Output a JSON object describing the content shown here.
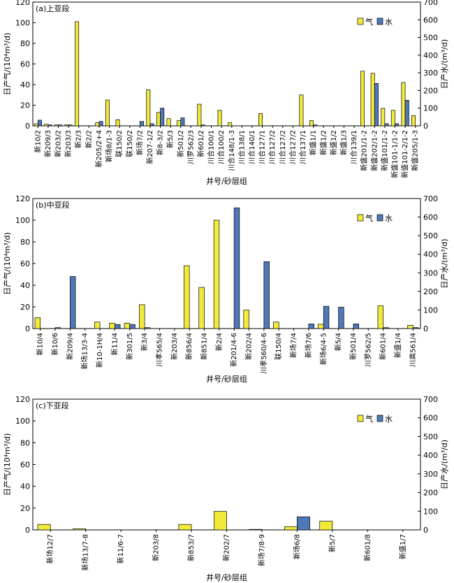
{
  "chart_data": [
    {
      "type": "bar",
      "panel_label": "(a)上亚段",
      "xlabel": "井号/砂层组",
      "ylabel": "日产气/(10⁴m³/d)",
      "ylabel2": "日产水/(m³/d)",
      "ylim": [
        0,
        120
      ],
      "y2lim": [
        0,
        700
      ],
      "yticks": [
        0,
        20,
        40,
        60,
        80,
        100,
        120
      ],
      "y2ticks": [
        0,
        100,
        200,
        300,
        400,
        500,
        600,
        700
      ],
      "legend": [
        "气",
        "水"
      ],
      "legend_position": "top-right",
      "categories": [
        "新10/2",
        "新209/3",
        "新203/2",
        "新203/3",
        "新2/3",
        "新2/2",
        "新205/2+4",
        "新场8/1-3",
        "联150/2",
        "联150/2",
        "新场7/2",
        "新207-1/2",
        "新8-3/2",
        "新5/3",
        "新501/2",
        "川罗562/3",
        "新601/2",
        "川合100/1",
        "川合100/2",
        "川合148/1-3",
        "川合138/1",
        "川合140/1",
        "川合127/1",
        "川合127/2",
        "川合127/2",
        "川合127/2",
        "川合137/1",
        "新盛1/1",
        "新盛1/2",
        "新盛1/2",
        "新盛1/3",
        "川合139/1",
        "新盛201/1-2",
        "新盛202/1-2",
        "新盛101/1-2",
        "新盛101-1/1-2",
        "新盛101-2/1-2",
        "新盛205/1-3"
      ],
      "series": [
        {
          "name": "气",
          "axis": "left",
          "values": [
            2,
            1.5,
            1,
            1,
            101,
            0,
            3,
            25,
            6,
            0,
            0,
            35,
            13,
            7,
            5,
            0,
            21,
            0,
            15,
            3,
            0,
            0,
            12,
            0,
            0,
            0,
            30,
            5,
            0,
            0,
            0,
            0,
            53,
            51,
            17,
            15,
            42,
            10
          ]
        },
        {
          "name": "水",
          "axis": "right",
          "values": [
            32,
            5,
            5,
            5,
            0,
            0,
            25,
            0,
            0,
            0,
            25,
            12,
            100,
            0,
            45,
            0,
            5,
            0,
            0,
            0,
            0,
            0,
            0,
            0,
            0,
            0,
            0,
            5,
            0,
            0,
            0,
            0,
            0,
            240,
            12,
            12,
            145,
            0
          ]
        }
      ]
    },
    {
      "type": "bar",
      "panel_label": "(b)中亚段",
      "xlabel": "井号/砂层组",
      "ylabel": "日产气/(10⁴m³/d)",
      "ylabel2": "日产水/(m³/d)",
      "ylim": [
        0,
        120
      ],
      "y2lim": [
        0,
        700
      ],
      "yticks": [
        0,
        20,
        40,
        60,
        80,
        100,
        120
      ],
      "y2ticks": [
        0,
        100,
        200,
        300,
        400,
        500,
        600,
        700
      ],
      "legend": [
        "气",
        "水"
      ],
      "legend_position": "top-right",
      "categories": [
        "新10/4",
        "新10/6",
        "新209/4",
        "新场13/3-4",
        "新10-1H/4",
        "新11/4",
        "新301/5",
        "新3/4",
        "川孝565/4",
        "新203/4",
        "新856/4",
        "新851/4",
        "新2/4",
        "新201/4-6",
        "新202/4",
        "川孝560/4-6",
        "联150/4",
        "新场7/4",
        "新场7/6",
        "新场6/4-5",
        "新5/4",
        "新501/4",
        "川罗562/5",
        "新601/4",
        "新盛1/4",
        "川高561/4"
      ],
      "series": [
        {
          "name": "气",
          "axis": "left",
          "values": [
            10,
            0,
            0,
            0,
            6,
            5,
            5,
            22,
            0,
            0,
            58,
            38,
            100,
            0,
            17,
            0,
            6,
            0,
            0,
            4,
            0,
            0,
            0,
            21,
            0,
            3
          ]
        },
        {
          "name": "水",
          "axis": "right",
          "values": [
            0,
            5,
            280,
            0,
            0,
            22,
            22,
            5,
            0,
            0,
            0,
            0,
            0,
            650,
            0,
            360,
            0,
            0,
            25,
            120,
            115,
            25,
            0,
            5,
            0,
            5
          ]
        }
      ]
    },
    {
      "type": "bar",
      "panel_label": "(c)下亚段",
      "xlabel": "井号/砂层组",
      "ylabel": "日产气/(10⁴m³/d)",
      "ylabel2": "日产水/(m³/d)",
      "ylim": [
        0,
        120
      ],
      "y2lim": [
        0,
        700
      ],
      "yticks": [
        0,
        20,
        40,
        60,
        80,
        100,
        120
      ],
      "y2ticks": [
        0,
        100,
        200,
        300,
        400,
        500,
        600,
        700
      ],
      "legend": [
        "气",
        "水"
      ],
      "legend_position": "top-right",
      "categories": [
        "新场12/7",
        "新场13/7-8",
        "新11/6-7",
        "新203/8",
        "新853/7",
        "新202/7",
        "新场7/8-9",
        "新场6/8",
        "新5/7",
        "新601/8",
        "新盛1/7"
      ],
      "series": [
        {
          "name": "气",
          "axis": "left",
          "values": [
            5,
            1,
            0,
            0,
            5,
            17,
            0.5,
            3,
            8,
            0,
            0
          ]
        },
        {
          "name": "水",
          "axis": "right",
          "values": [
            0,
            0,
            0,
            0,
            0,
            0,
            0,
            70,
            0,
            0,
            0
          ]
        }
      ]
    }
  ],
  "colors": {
    "gas": "#f2ea3a",
    "water": "#4f78b8",
    "axis": "#000000"
  }
}
